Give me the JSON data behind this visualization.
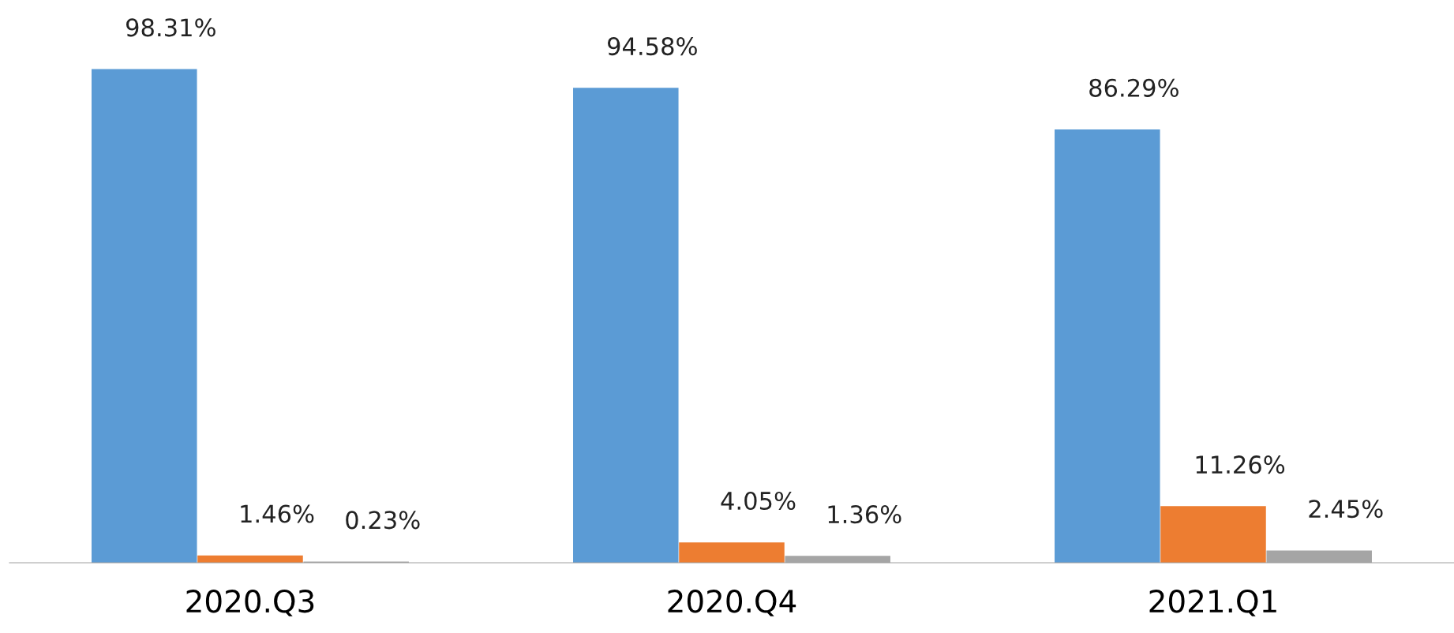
{
  "chart_data": {
    "type": "bar",
    "categories": [
      "2020.Q3",
      "2020.Q4",
      "2021.Q1"
    ],
    "series": [
      {
        "color": "#5b9bd5",
        "values": [
          98.31,
          94.58,
          86.29
        ],
        "value_labels": [
          "98.31%",
          "94.58%",
          "86.29%"
        ]
      },
      {
        "color": "#ed7d31",
        "values": [
          1.46,
          4.05,
          11.26
        ],
        "value_labels": [
          "1.46%",
          "4.05%",
          "11.26%"
        ]
      },
      {
        "color": "#a5a5a5",
        "values": [
          0.23,
          1.36,
          2.45
        ],
        "value_labels": [
          "0.23%",
          "1.36%",
          "2.45%"
        ]
      }
    ],
    "grid": false
  }
}
